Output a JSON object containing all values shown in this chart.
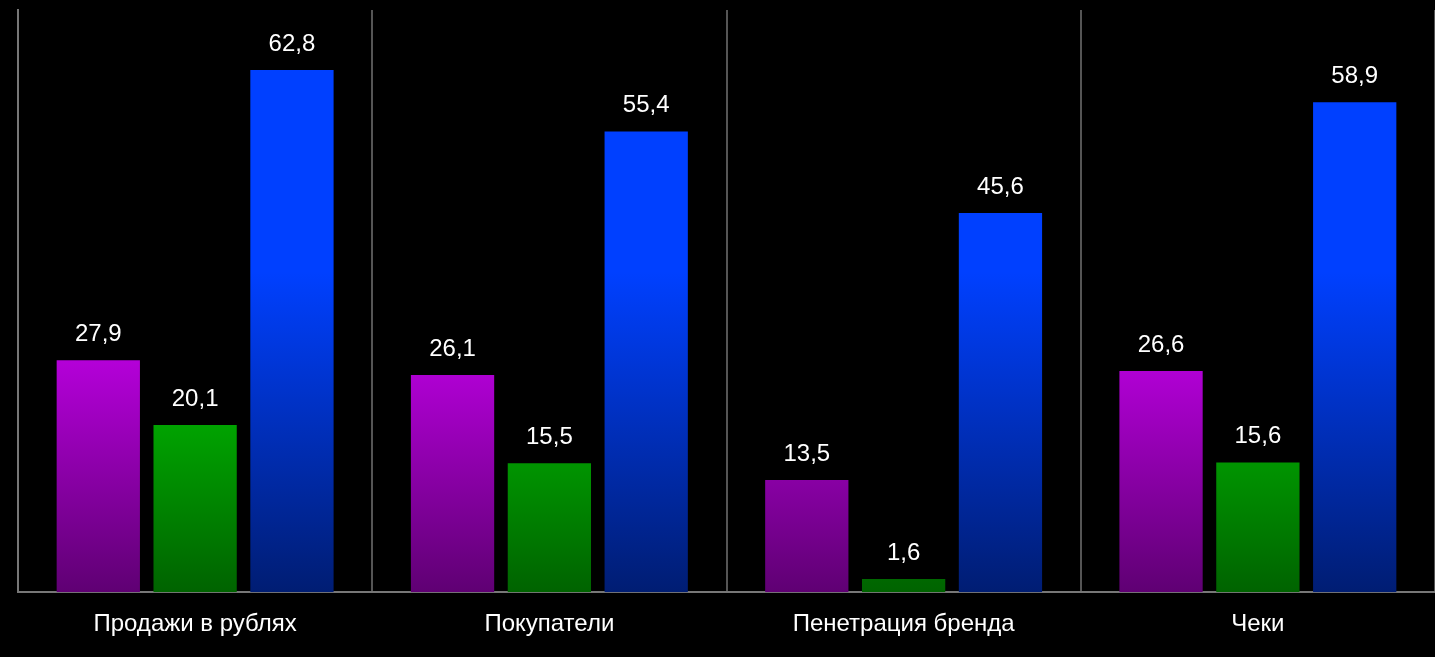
{
  "chart_data": {
    "type": "bar",
    "categories": [
      "Продажи в рублях",
      "Покупатели",
      "Пенетрация бренда",
      "Чеки"
    ],
    "series": [
      {
        "color": "#d400ff",
        "values": [
          27.9,
          26.1,
          13.5,
          26.6
        ],
        "value_labels": [
          "27,9",
          "26,1",
          "13,5",
          "26,6"
        ]
      },
      {
        "color": "#00dd00",
        "values": [
          20.1,
          15.5,
          1.6,
          15.6
        ],
        "value_labels": [
          "20,1",
          "15,5",
          "1,6",
          "15,6"
        ]
      },
      {
        "color": "#0040ff",
        "values": [
          62.8,
          55.4,
          45.6,
          58.9
        ],
        "value_labels": [
          "62,8",
          "55,4",
          "45,6",
          "58,9"
        ]
      }
    ],
    "tick_labels": "x",
    "grid": "x",
    "legend": false
  }
}
